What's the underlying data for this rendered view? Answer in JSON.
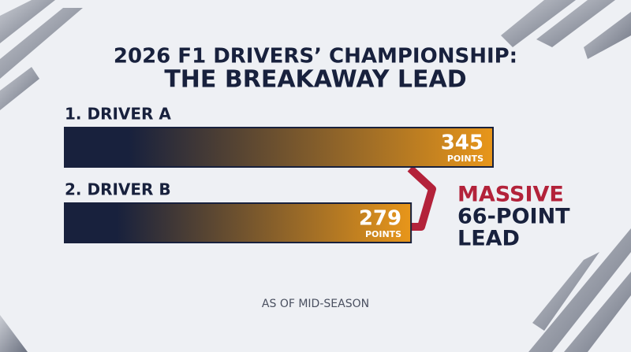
{
  "chart_data": {
    "type": "bar",
    "orientation": "horizontal",
    "title": "2026 F1 DRIVERS’ CHAMPIONSHIP:",
    "subtitle": "THE BREAKAWAY LEAD",
    "categories": [
      "1. DRIVER A",
      "2. DRIVER B"
    ],
    "values": [
      345,
      279
    ],
    "unit_label": "POINTS",
    "colors": [
      "#18213d",
      "#e8961a"
    ],
    "annotation": [
      "MASSIVE",
      "66-POINT",
      "LEAD"
    ],
    "annotation_color": "#b3223a",
    "footnote": "AS OF MID-SEASON"
  }
}
